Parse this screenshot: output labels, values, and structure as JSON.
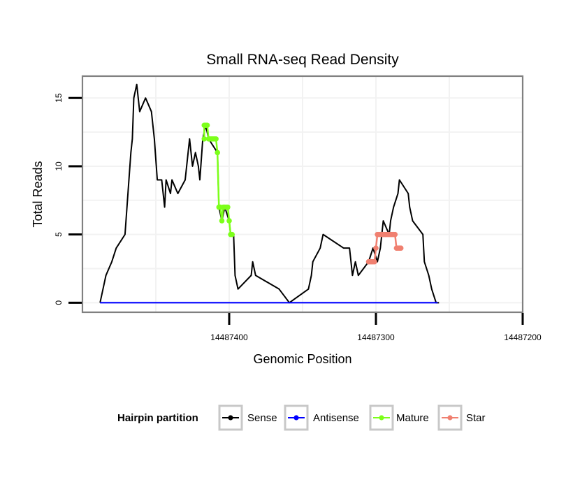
{
  "chart_data": {
    "type": "line",
    "title": "Small RNA-seq Read Density",
    "xlabel": "Genomic Position",
    "ylabel": "Total Reads",
    "x_reversed": true,
    "xlim": [
      14487500,
      14487200
    ],
    "ylim": [
      -0.7,
      16.6
    ],
    "x_ticks": [
      14487400,
      14487300,
      14487200
    ],
    "x_tick_labels": [
      "14487400",
      "14487300",
      "14487200"
    ],
    "y_ticks": [
      0,
      5,
      10,
      15
    ],
    "y_tick_labels": [
      "0",
      "5",
      "10",
      "15"
    ],
    "grid": true,
    "legend_position": "bottom",
    "legend_title": "Hairpin partition",
    "colors": {
      "sense": "#000000",
      "antisense": "#0000ff",
      "mature": "#7cff1a",
      "star": "#f08070",
      "panel_border": "#808080",
      "grid": "#f2f2f2",
      "legend_key_border": "#c8c8c8"
    },
    "series": [
      {
        "name": "Sense",
        "key": "sense",
        "points": [
          [
            14487488,
            0
          ],
          [
            14487486,
            1
          ],
          [
            14487484,
            2
          ],
          [
            14487480,
            3
          ],
          [
            14487477,
            4
          ],
          [
            14487471,
            5
          ],
          [
            14487469,
            8
          ],
          [
            14487467,
            11
          ],
          [
            14487466,
            12
          ],
          [
            14487465,
            15
          ],
          [
            14487463,
            16
          ],
          [
            14487461,
            14
          ],
          [
            14487457,
            15
          ],
          [
            14487453,
            14
          ],
          [
            14487451,
            12
          ],
          [
            14487449,
            9
          ],
          [
            14487446,
            9
          ],
          [
            14487444,
            7
          ],
          [
            14487443,
            9
          ],
          [
            14487440,
            8
          ],
          [
            14487439,
            9
          ],
          [
            14487435,
            8
          ],
          [
            14487430,
            9
          ],
          [
            14487428,
            11
          ],
          [
            14487427,
            12
          ],
          [
            14487426,
            11
          ],
          [
            14487425,
            10
          ],
          [
            14487423,
            11
          ],
          [
            14487421,
            10
          ],
          [
            14487420,
            9
          ],
          [
            14487418,
            12
          ],
          [
            14487416,
            13
          ],
          [
            14487414,
            12
          ],
          [
            14487408,
            11
          ],
          [
            14487407,
            7
          ],
          [
            14487405,
            6
          ],
          [
            14487403,
            7
          ],
          [
            14487400,
            6
          ],
          [
            14487399,
            5
          ],
          [
            14487397,
            5
          ],
          [
            14487396,
            2
          ],
          [
            14487394,
            1
          ],
          [
            14487385,
            2
          ],
          [
            14487384,
            3
          ],
          [
            14487382,
            2
          ],
          [
            14487366,
            1
          ],
          [
            14487359,
            0
          ],
          [
            14487346,
            1
          ],
          [
            14487344,
            2
          ],
          [
            14487343,
            3
          ],
          [
            14487338,
            4
          ],
          [
            14487336,
            5
          ],
          [
            14487322,
            4
          ],
          [
            14487318,
            4
          ],
          [
            14487316,
            2
          ],
          [
            14487314,
            3
          ],
          [
            14487312,
            2
          ],
          [
            14487305,
            3
          ],
          [
            14487302,
            4
          ],
          [
            14487299,
            3
          ],
          [
            14487297,
            4
          ],
          [
            14487295,
            6
          ],
          [
            14487291,
            5
          ],
          [
            14487290,
            6
          ],
          [
            14487288,
            7
          ],
          [
            14487285,
            8
          ],
          [
            14487284,
            9
          ],
          [
            14487278,
            8
          ],
          [
            14487277,
            7
          ],
          [
            14487275,
            6
          ],
          [
            14487268,
            5
          ],
          [
            14487267,
            3
          ],
          [
            14487264,
            2
          ],
          [
            14487262,
            1
          ],
          [
            14487259,
            0
          ],
          [
            14487257,
            0
          ]
        ]
      },
      {
        "name": "Antisense",
        "key": "antisense",
        "points": [
          [
            14487488,
            0
          ],
          [
            14487258,
            0
          ]
        ]
      },
      {
        "name": "Mature",
        "key": "mature",
        "points": [
          [
            14487417,
            12
          ],
          [
            14487417,
            13
          ],
          [
            14487416,
            13
          ],
          [
            14487415,
            13
          ],
          [
            14487414,
            12
          ],
          [
            14487413,
            12
          ],
          [
            14487412,
            12
          ],
          [
            14487411,
            12
          ],
          [
            14487410,
            12
          ],
          [
            14487409,
            12
          ],
          [
            14487408,
            11
          ],
          [
            14487407,
            7
          ],
          [
            14487406,
            7
          ],
          [
            14487405,
            6
          ],
          [
            14487404,
            7
          ],
          [
            14487403,
            7
          ],
          [
            14487402,
            7
          ],
          [
            14487401,
            7
          ],
          [
            14487400,
            6
          ],
          [
            14487399,
            5
          ],
          [
            14487398,
            5
          ]
        ]
      },
      {
        "name": "Star",
        "key": "star",
        "points": [
          [
            14487305,
            3
          ],
          [
            14487304,
            3
          ],
          [
            14487303,
            3
          ],
          [
            14487302,
            3
          ],
          [
            14487301,
            3
          ],
          [
            14487300,
            4
          ],
          [
            14487299,
            5
          ],
          [
            14487298,
            5
          ],
          [
            14487297,
            5
          ],
          [
            14487296,
            5
          ],
          [
            14487295,
            5
          ],
          [
            14487294,
            5
          ],
          [
            14487293,
            5
          ],
          [
            14487292,
            5
          ],
          [
            14487291,
            5
          ],
          [
            14487290,
            5
          ],
          [
            14487289,
            5
          ],
          [
            14487288,
            5
          ],
          [
            14487287,
            5
          ],
          [
            14487286,
            4
          ],
          [
            14487285,
            4
          ],
          [
            14487284,
            4
          ],
          [
            14487283,
            4
          ]
        ]
      }
    ]
  }
}
